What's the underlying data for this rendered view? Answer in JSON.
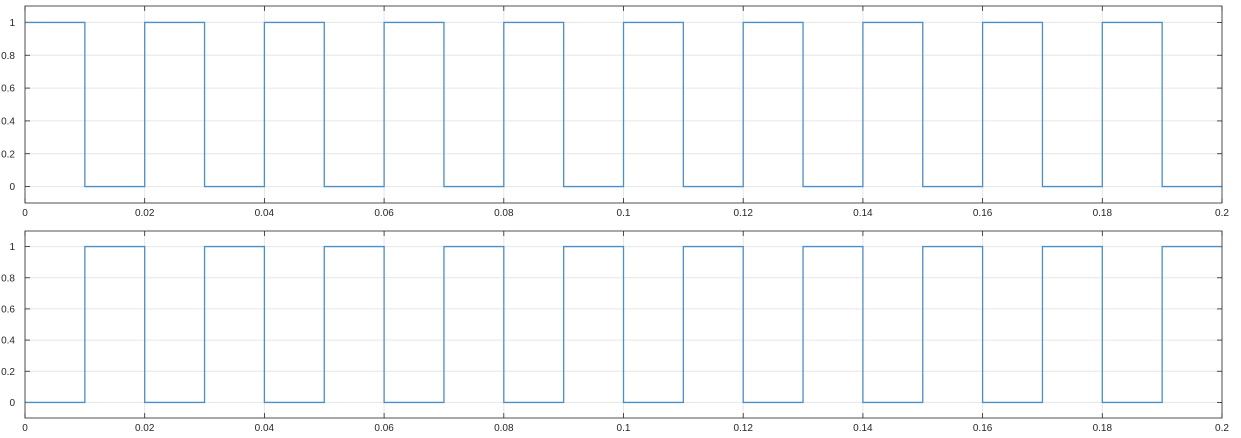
{
  "chart_data": [
    {
      "type": "line",
      "xlim": [
        0,
        0.2
      ],
      "ylim": [
        -0.1,
        1.1
      ],
      "grid": true,
      "series_color": "#4a8fc7",
      "x_ticks": [
        0,
        0.02,
        0.04,
        0.06,
        0.08,
        0.1,
        0.12,
        0.14,
        0.16,
        0.18,
        0.2
      ],
      "x_tick_labels": [
        "0",
        "0.02",
        "0.04",
        "0.06",
        "0.08",
        "0.1",
        "0.12",
        "0.14",
        "0.16",
        "0.18",
        "0.2"
      ],
      "y_ticks": [
        0,
        0.2,
        0.4,
        0.6,
        0.8,
        1
      ],
      "y_tick_labels": [
        "0",
        "0.2",
        "0.4",
        "0.6",
        "0.8",
        "1"
      ],
      "series": [
        {
          "x": [
            0,
            0.01,
            0.01,
            0.02,
            0.02,
            0.03,
            0.03,
            0.04,
            0.04,
            0.05,
            0.05,
            0.06,
            0.06,
            0.07,
            0.07,
            0.08,
            0.08,
            0.09,
            0.09,
            0.1,
            0.1,
            0.11,
            0.11,
            0.12,
            0.12,
            0.13,
            0.13,
            0.14,
            0.14,
            0.15,
            0.15,
            0.16,
            0.16,
            0.17,
            0.17,
            0.18,
            0.18,
            0.19,
            0.19,
            0.2
          ],
          "y": [
            1,
            1,
            0,
            0,
            1,
            1,
            0,
            0,
            1,
            1,
            0,
            0,
            1,
            1,
            0,
            0,
            1,
            1,
            0,
            0,
            1,
            1,
            0,
            0,
            1,
            1,
            0,
            0,
            1,
            1,
            0,
            0,
            1,
            1,
            0,
            0,
            1,
            1,
            0,
            0
          ]
        }
      ]
    },
    {
      "type": "line",
      "xlim": [
        0,
        0.2
      ],
      "ylim": [
        -0.1,
        1.1
      ],
      "grid": true,
      "series_color": "#4a8fc7",
      "x_ticks": [
        0,
        0.02,
        0.04,
        0.06,
        0.08,
        0.1,
        0.12,
        0.14,
        0.16,
        0.18,
        0.2
      ],
      "x_tick_labels": [
        "0",
        "0.02",
        "0.04",
        "0.06",
        "0.08",
        "0.1",
        "0.12",
        "0.14",
        "0.16",
        "0.18",
        "0.2"
      ],
      "y_ticks": [
        0,
        0.2,
        0.4,
        0.6,
        0.8,
        1
      ],
      "y_tick_labels": [
        "0",
        "0.2",
        "0.4",
        "0.6",
        "0.8",
        "1"
      ],
      "series": [
        {
          "x": [
            0,
            0.01,
            0.01,
            0.02,
            0.02,
            0.03,
            0.03,
            0.04,
            0.04,
            0.05,
            0.05,
            0.06,
            0.06,
            0.07,
            0.07,
            0.08,
            0.08,
            0.09,
            0.09,
            0.1,
            0.1,
            0.11,
            0.11,
            0.12,
            0.12,
            0.13,
            0.13,
            0.14,
            0.14,
            0.15,
            0.15,
            0.16,
            0.16,
            0.17,
            0.17,
            0.18,
            0.18,
            0.19,
            0.19,
            0.2
          ],
          "y": [
            0,
            0,
            1,
            1,
            0,
            0,
            1,
            1,
            0,
            0,
            1,
            1,
            0,
            0,
            1,
            1,
            0,
            0,
            1,
            1,
            0,
            0,
            1,
            1,
            0,
            0,
            1,
            1,
            0,
            0,
            1,
            1,
            0,
            0,
            1,
            1,
            0,
            0,
            1,
            1
          ]
        }
      ]
    }
  ]
}
